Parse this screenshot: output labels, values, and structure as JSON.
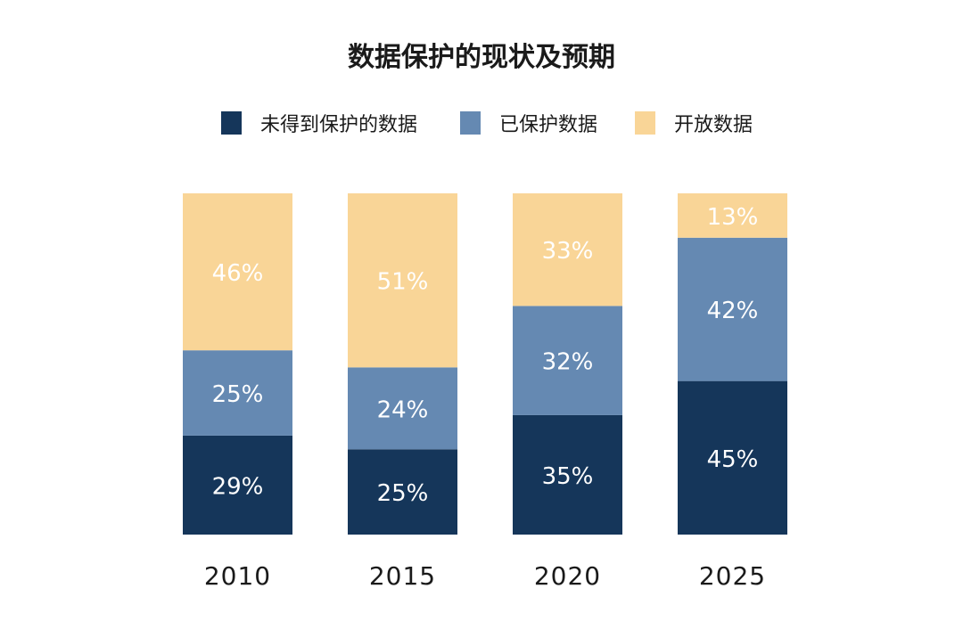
{
  "chart_data": {
    "type": "bar",
    "stacked": true,
    "title": "数据保护的现状及预期",
    "categories": [
      "2010",
      "2015",
      "2020",
      "2025"
    ],
    "series": [
      {
        "name": "未得到保护的数据",
        "values": [
          29,
          25,
          35,
          45
        ],
        "color": "#15365a"
      },
      {
        "name": "已保护数据",
        "values": [
          25,
          24,
          32,
          42
        ],
        "color": "#6589b2"
      },
      {
        "name": "开放数据",
        "values": [
          46,
          51,
          33,
          13
        ],
        "color": "#f9d597"
      }
    ],
    "value_suffix": "%",
    "legend_position": "top",
    "grid": false,
    "ylim": [
      0,
      100
    ]
  }
}
